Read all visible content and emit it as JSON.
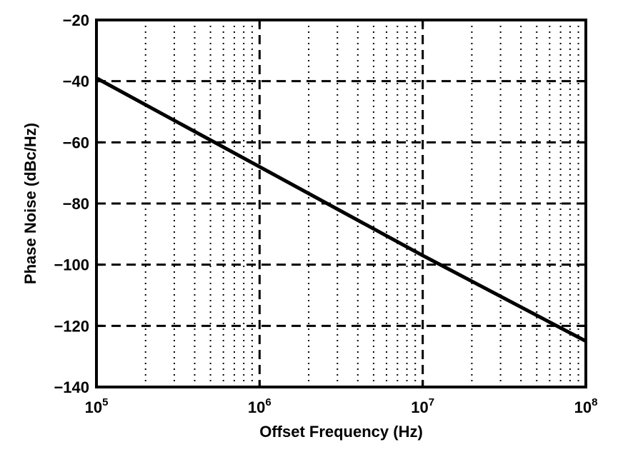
{
  "chart_data": {
    "type": "line",
    "title": "",
    "xlabel": "Offset Frequency (Hz)",
    "ylabel": "Phase Noise (dBc/Hz)",
    "x_scale": "log",
    "xlim": [
      100000,
      100000000
    ],
    "ylim": [
      -140,
      -20
    ],
    "x_ticks": [
      {
        "value": 100000,
        "base": "10",
        "exp": "5"
      },
      {
        "value": 1000000,
        "base": "10",
        "exp": "6"
      },
      {
        "value": 10000000,
        "base": "10",
        "exp": "7"
      },
      {
        "value": 100000000,
        "base": "10",
        "exp": "8"
      }
    ],
    "y_ticks": [
      {
        "value": -20,
        "label": "−20"
      },
      {
        "value": -40,
        "label": "−40"
      },
      {
        "value": -60,
        "label": "−60"
      },
      {
        "value": -80,
        "label": "−80"
      },
      {
        "value": -100,
        "label": "−100"
      },
      {
        "value": -120,
        "label": "−120"
      },
      {
        "value": -140,
        "label": "−140"
      }
    ],
    "grid": true,
    "series": [
      {
        "x": [
          100000,
          1000000,
          10000000,
          100000000
        ],
        "y": [
          -39,
          -68,
          -97,
          -125
        ],
        "color": "#000000"
      }
    ]
  }
}
